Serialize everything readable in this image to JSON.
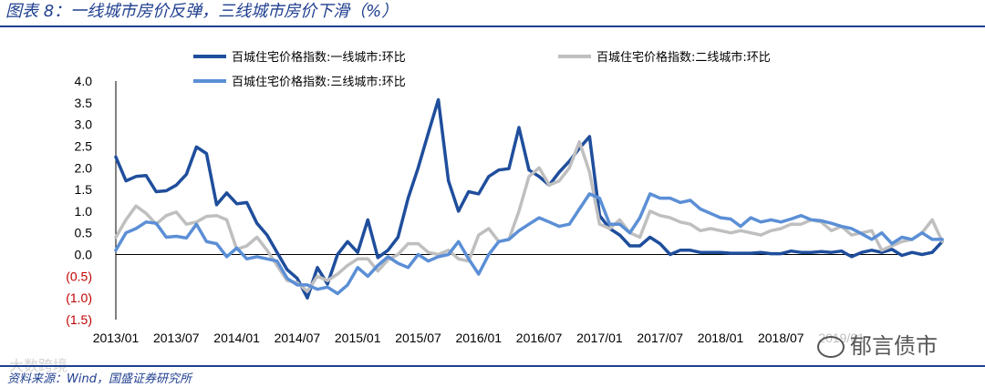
{
  "title": "图表 8：一线城市房价反弹，三线城市房价下滑（%）",
  "source": "资料来源：Wind，国盛证券研究所",
  "watermarks": {
    "left": "大数跨境",
    "right": "郁言债市"
  },
  "colors": {
    "tier1": "#1f4e9c",
    "tier2": "#bfbfbf",
    "tier3": "#5b8fd6",
    "negative": "#c00000",
    "text": "#000000",
    "rule": "#1f3f8f"
  },
  "chart_data": {
    "type": "line",
    "ylim": [
      -1.5,
      4.0
    ],
    "y_ticks": [
      {
        "value": 4.0,
        "label": "4.0"
      },
      {
        "value": 3.5,
        "label": "3.5"
      },
      {
        "value": 3.0,
        "label": "3.0"
      },
      {
        "value": 2.5,
        "label": "2.5"
      },
      {
        "value": 2.0,
        "label": "2.0"
      },
      {
        "value": 1.5,
        "label": "1.5"
      },
      {
        "value": 1.0,
        "label": "1.0"
      },
      {
        "value": 0.5,
        "label": "0.5"
      },
      {
        "value": 0.0,
        "label": "0.0"
      },
      {
        "value": -0.5,
        "label": "(0.5)"
      },
      {
        "value": -1.0,
        "label": "(1.0)"
      },
      {
        "value": -1.5,
        "label": "(1.5)"
      }
    ],
    "x_ticks": [
      "2013/01",
      "2013/07",
      "2014/01",
      "2014/07",
      "2015/01",
      "2015/07",
      "2016/01",
      "2016/07",
      "2017/01",
      "2017/07",
      "2018/01",
      "2018/07",
      "2019/01"
    ],
    "x_start": "2013/01",
    "series": [
      {
        "name": "百城住宅价格指数:一线城市:环比",
        "color_key": "tier1",
        "values": [
          2.25,
          1.7,
          1.8,
          1.82,
          1.45,
          1.47,
          1.6,
          1.85,
          2.48,
          2.33,
          1.15,
          1.42,
          1.17,
          1.2,
          0.72,
          0.45,
          0.05,
          -0.35,
          -0.55,
          -1.0,
          -0.3,
          -0.68,
          0.0,
          0.3,
          0.05,
          0.8,
          -0.07,
          0.1,
          0.4,
          1.3,
          2.0,
          2.8,
          3.57,
          1.7,
          1.0,
          1.45,
          1.4,
          1.8,
          1.95,
          1.98,
          2.93,
          1.95,
          1.8,
          1.6,
          1.9,
          2.15,
          2.45,
          2.72,
          0.9,
          0.6,
          0.45,
          0.2,
          0.2,
          0.4,
          0.25,
          0.0,
          0.1,
          0.1,
          0.05,
          0.05,
          0.05,
          0.03,
          0.03,
          0.03,
          0.05,
          0.02,
          0.02,
          0.08,
          0.05,
          0.05,
          0.07,
          0.05,
          0.08,
          -0.05,
          0.05,
          0.1,
          0.05,
          0.12,
          -0.02,
          0.05,
          0.0,
          0.05,
          0.3
        ]
      },
      {
        "name": "百城住宅价格指数:二线城市:环比",
        "color_key": "tier2",
        "values": [
          0.4,
          0.8,
          1.12,
          0.95,
          0.7,
          0.9,
          0.98,
          0.7,
          0.75,
          0.88,
          0.9,
          0.8,
          0.12,
          0.2,
          0.4,
          0.1,
          -0.25,
          -0.6,
          -0.65,
          -0.85,
          -0.5,
          -0.6,
          -0.45,
          -0.25,
          -0.1,
          -0.1,
          -0.38,
          -0.12,
          0.0,
          0.25,
          0.25,
          0.05,
          0.0,
          0.1,
          -0.1,
          -0.15,
          0.45,
          0.6,
          0.3,
          0.35,
          1.0,
          1.8,
          2.0,
          1.6,
          1.7,
          2.0,
          2.6,
          1.9,
          0.7,
          0.6,
          0.8,
          0.5,
          0.4,
          1.0,
          0.9,
          0.85,
          0.75,
          0.7,
          0.55,
          0.6,
          0.55,
          0.5,
          0.55,
          0.5,
          0.45,
          0.55,
          0.6,
          0.7,
          0.7,
          0.8,
          0.75,
          0.55,
          0.65,
          0.45,
          0.5,
          0.55,
          0.1,
          0.2,
          0.3,
          0.35,
          0.5,
          0.8,
          0.3
        ]
      },
      {
        "name": "百城住宅价格指数:三线城市:环比",
        "color_key": "tier3",
        "values": [
          0.1,
          0.5,
          0.6,
          0.75,
          0.72,
          0.4,
          0.42,
          0.38,
          0.7,
          0.3,
          0.25,
          -0.05,
          0.15,
          -0.1,
          -0.05,
          -0.1,
          -0.15,
          -0.55,
          -0.7,
          -0.7,
          -0.8,
          -0.75,
          -0.9,
          -0.7,
          -0.3,
          -0.5,
          -0.25,
          -0.05,
          -0.2,
          -0.3,
          0.0,
          -0.15,
          -0.05,
          0.0,
          0.3,
          -0.1,
          -0.45,
          0.0,
          0.3,
          0.35,
          0.55,
          0.7,
          0.85,
          0.75,
          0.65,
          0.7,
          1.05,
          1.4,
          1.3,
          0.7,
          0.7,
          0.5,
          0.85,
          1.4,
          1.3,
          1.3,
          1.2,
          1.25,
          1.05,
          0.95,
          0.85,
          0.82,
          0.65,
          0.85,
          0.75,
          0.8,
          0.75,
          0.82,
          0.9,
          0.8,
          0.78,
          0.72,
          0.65,
          0.6,
          0.48,
          0.35,
          0.5,
          0.25,
          0.4,
          0.35,
          0.5,
          0.35,
          0.35
        ]
      }
    ]
  }
}
